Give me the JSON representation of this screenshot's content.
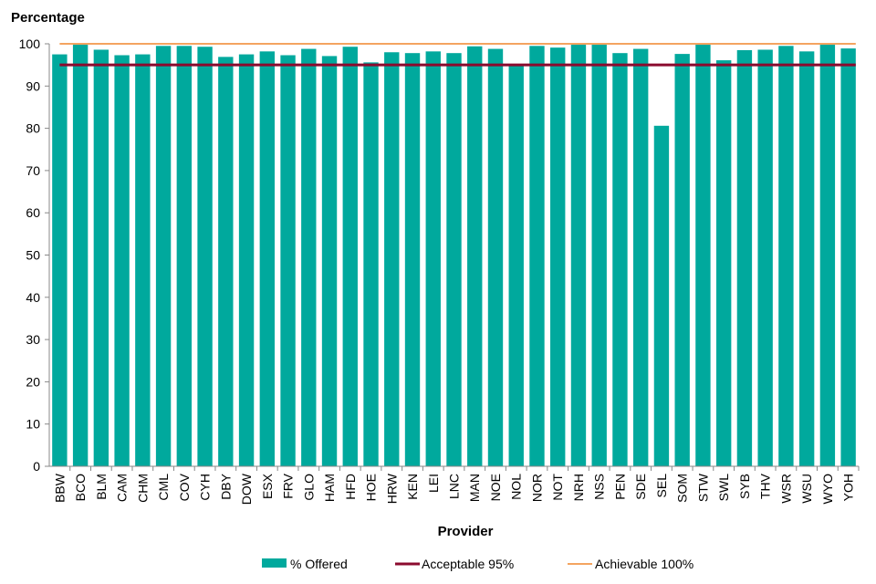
{
  "chart_data": {
    "type": "bar",
    "ylabel": "Percentage",
    "xlabel": "Provider",
    "ylim": [
      0,
      100
    ],
    "yticks": [
      0,
      10,
      20,
      30,
      40,
      50,
      60,
      70,
      80,
      90,
      100
    ],
    "categories": [
      "BBW",
      "BCO",
      "BLM",
      "CAM",
      "CHM",
      "CML",
      "COV",
      "CYH",
      "DBY",
      "DOW",
      "ESX",
      "FRV",
      "GLO",
      "HAM",
      "HFD",
      "HOE",
      "HRW",
      "KEN",
      "LEI",
      "LNC",
      "MAN",
      "NOE",
      "NOL",
      "NOR",
      "NOT",
      "NRH",
      "NSS",
      "PEN",
      "SDE",
      "SEL",
      "SOM",
      "STW",
      "SWL",
      "SYB",
      "THV",
      "WSR",
      "WSU",
      "WYO",
      "YOH"
    ],
    "series": [
      {
        "name": "% Offered",
        "color": "#00a99d",
        "values": [
          97.5,
          99.8,
          98.6,
          97.3,
          97.5,
          99.5,
          99.5,
          99.3,
          96.9,
          97.5,
          98.2,
          97.3,
          98.8,
          97.1,
          99.3,
          95.6,
          98.0,
          97.8,
          98.2,
          97.8,
          99.4,
          98.8,
          94.8,
          99.5,
          99.1,
          99.8,
          99.8,
          97.8,
          98.8,
          80.6,
          97.6,
          99.8,
          96.1,
          98.5,
          98.6,
          99.5,
          98.2,
          99.8,
          98.9
        ]
      }
    ],
    "reference_lines": [
      {
        "name": "Acceptable 95%",
        "value": 95,
        "color": "#8b0a2e"
      },
      {
        "name": "Achievable 100%",
        "value": 100,
        "color": "#f4a460"
      }
    ],
    "legend_position": "bottom"
  }
}
